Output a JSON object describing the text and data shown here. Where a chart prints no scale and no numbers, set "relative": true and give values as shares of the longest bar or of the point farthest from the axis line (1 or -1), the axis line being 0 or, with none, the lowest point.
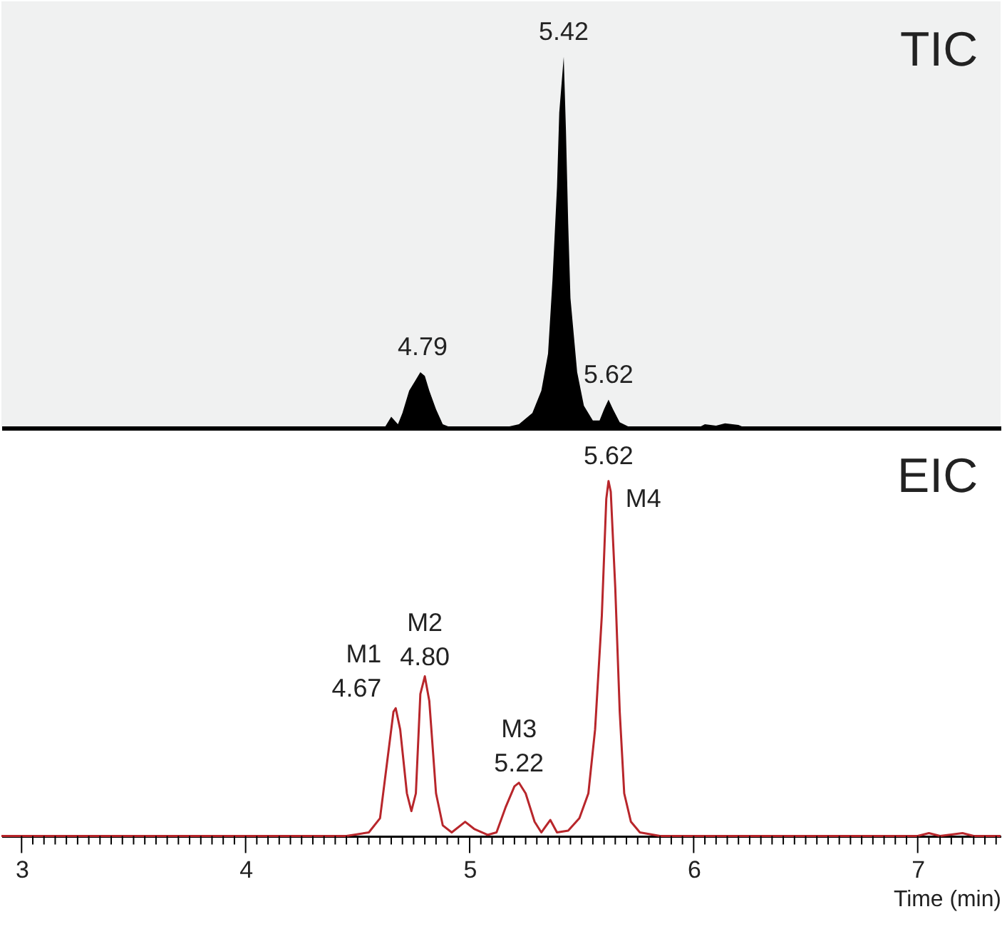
{
  "chart_data": [
    {
      "type": "area",
      "title": "TIC",
      "relative": true,
      "tick_labels": false,
      "grid": false,
      "xlim": [
        2.91,
        7.37
      ],
      "x": [
        2.91,
        4.62,
        4.65,
        4.68,
        4.7,
        4.73,
        4.76,
        4.78,
        4.8,
        4.82,
        4.85,
        4.88,
        4.92,
        5.15,
        5.22,
        5.28,
        5.32,
        5.35,
        5.37,
        5.39,
        5.4,
        5.42,
        5.43,
        5.44,
        5.45,
        5.48,
        5.51,
        5.55,
        5.58,
        5.6,
        5.62,
        5.64,
        5.67,
        5.72,
        6.02,
        6.05,
        6.1,
        6.14,
        6.2,
        6.23,
        7.37
      ],
      "series": [
        {
          "color": "#000000",
          "values": [
            0,
            0,
            0.03,
            0.01,
            0.04,
            0.1,
            0.13,
            0.15,
            0.14,
            0.1,
            0.05,
            0.01,
            0,
            0,
            0.01,
            0.04,
            0.1,
            0.2,
            0.4,
            0.65,
            0.85,
            1,
            0.8,
            0.55,
            0.35,
            0.15,
            0.06,
            0.02,
            0.02,
            0.05,
            0.076,
            0.05,
            0.015,
            0,
            0,
            0.01,
            0.006,
            0.012,
            0.008,
            0,
            0
          ]
        }
      ],
      "annotations": [
        {
          "text": "4.79",
          "x": 4.79,
          "y": 0.15
        },
        {
          "text": "5.42",
          "x": 5.42,
          "y": 1
        },
        {
          "text": "5.62",
          "x": 5.62,
          "y": 0.076
        }
      ]
    },
    {
      "type": "line",
      "title": "EIC",
      "relative": true,
      "tick_labels": "x",
      "grid": false,
      "xlabel": "Time (min)",
      "xlim": [
        2.91,
        7.37
      ],
      "line_style": "solid",
      "marker": "none",
      "xticks": [
        3,
        {
          "value": 3.05,
          "label": null
        },
        {
          "value": 3.1,
          "label": null
        },
        {
          "value": 3.15,
          "label": null
        },
        {
          "value": 3.2,
          "label": null
        },
        {
          "value": 3.25,
          "label": null
        },
        {
          "value": 3.3,
          "label": null
        },
        {
          "value": 3.35,
          "label": null
        },
        {
          "value": 3.4,
          "label": null
        },
        {
          "value": 3.45,
          "label": null
        },
        {
          "value": 3.5,
          "label": null
        },
        {
          "value": 3.55,
          "label": null
        },
        {
          "value": 3.6,
          "label": null
        },
        {
          "value": 3.65,
          "label": null
        },
        {
          "value": 3.7,
          "label": null
        },
        {
          "value": 3.75,
          "label": null
        },
        {
          "value": 3.8,
          "label": null
        },
        {
          "value": 3.85,
          "label": null
        },
        {
          "value": 3.9,
          "label": null
        },
        {
          "value": 3.95,
          "label": null
        },
        4,
        {
          "value": 4.05,
          "label": null
        },
        {
          "value": 4.1,
          "label": null
        },
        {
          "value": 4.15,
          "label": null
        },
        {
          "value": 4.2,
          "label": null
        },
        {
          "value": 4.25,
          "label": null
        },
        {
          "value": 4.3,
          "label": null
        },
        {
          "value": 4.35,
          "label": null
        },
        {
          "value": 4.4,
          "label": null
        },
        {
          "value": 4.45,
          "label": null
        },
        {
          "value": 4.5,
          "label": null
        },
        {
          "value": 4.55,
          "label": null
        },
        {
          "value": 4.6,
          "label": null
        },
        {
          "value": 4.65,
          "label": null
        },
        {
          "value": 4.7,
          "label": null
        },
        {
          "value": 4.75,
          "label": null
        },
        {
          "value": 4.8,
          "label": null
        },
        {
          "value": 4.85,
          "label": null
        },
        {
          "value": 4.9,
          "label": null
        },
        {
          "value": 4.95,
          "label": null
        },
        5,
        {
          "value": 5.05,
          "label": null
        },
        {
          "value": 5.1,
          "label": null
        },
        {
          "value": 5.15,
          "label": null
        },
        {
          "value": 5.2,
          "label": null
        },
        {
          "value": 5.25,
          "label": null
        },
        {
          "value": 5.3,
          "label": null
        },
        {
          "value": 5.35,
          "label": null
        },
        {
          "value": 5.4,
          "label": null
        },
        {
          "value": 5.45,
          "label": null
        },
        {
          "value": 5.5,
          "label": null
        },
        {
          "value": 5.55,
          "label": null
        },
        {
          "value": 5.6,
          "label": null
        },
        {
          "value": 5.65,
          "label": null
        },
        {
          "value": 5.7,
          "label": null
        },
        {
          "value": 5.75,
          "label": null
        },
        {
          "value": 5.8,
          "label": null
        },
        {
          "value": 5.85,
          "label": null
        },
        {
          "value": 5.9,
          "label": null
        },
        {
          "value": 5.95,
          "label": null
        },
        6,
        {
          "value": 6.05,
          "label": null
        },
        {
          "value": 6.1,
          "label": null
        },
        {
          "value": 6.15,
          "label": null
        },
        {
          "value": 6.2,
          "label": null
        },
        {
          "value": 6.25,
          "label": null
        },
        {
          "value": 6.3,
          "label": null
        },
        {
          "value": 6.35,
          "label": null
        },
        {
          "value": 6.4,
          "label": null
        },
        {
          "value": 6.45,
          "label": null
        },
        {
          "value": 6.5,
          "label": null
        },
        {
          "value": 6.55,
          "label": null
        },
        {
          "value": 6.6,
          "label": null
        },
        {
          "value": 6.65,
          "label": null
        },
        {
          "value": 6.7,
          "label": null
        },
        {
          "value": 6.75,
          "label": null
        },
        {
          "value": 6.8,
          "label": null
        },
        {
          "value": 6.85,
          "label": null
        },
        {
          "value": 6.9,
          "label": null
        },
        {
          "value": 6.95,
          "label": null
        },
        7,
        {
          "value": 7.05,
          "label": null
        },
        {
          "value": 7.1,
          "label": null
        },
        {
          "value": 7.15,
          "label": null
        },
        {
          "value": 7.2,
          "label": null
        },
        {
          "value": 7.25,
          "label": null
        },
        {
          "value": 7.3,
          "label": null
        },
        {
          "value": 7.35,
          "label": null
        }
      ],
      "x": [
        2.91,
        4.45,
        4.55,
        4.6,
        4.63,
        4.66,
        4.67,
        4.69,
        4.72,
        4.74,
        4.76,
        4.78,
        4.8,
        4.82,
        4.85,
        4.88,
        4.92,
        4.98,
        5.02,
        5.08,
        5.12,
        5.16,
        5.2,
        5.22,
        5.25,
        5.29,
        5.32,
        5.36,
        5.39,
        5.44,
        5.49,
        5.53,
        5.56,
        5.59,
        5.61,
        5.62,
        5.63,
        5.65,
        5.67,
        5.69,
        5.72,
        5.76,
        5.85,
        7.0,
        7.05,
        7.1,
        7.2,
        7.25,
        7.37
      ],
      "series": [
        {
          "color": "#b8262b",
          "values": [
            0,
            0,
            0.01,
            0.05,
            0.2,
            0.35,
            0.36,
            0.3,
            0.12,
            0.07,
            0.12,
            0.4,
            0.45,
            0.38,
            0.12,
            0.03,
            0.01,
            0.04,
            0.02,
            0.003,
            0.01,
            0.08,
            0.14,
            0.15,
            0.12,
            0.04,
            0.01,
            0.045,
            0.01,
            0.015,
            0.05,
            0.12,
            0.3,
            0.62,
            0.95,
            1,
            0.97,
            0.7,
            0.35,
            0.12,
            0.04,
            0.01,
            0,
            0,
            0.008,
            0,
            0.008,
            0,
            0
          ]
        }
      ],
      "annotations": [
        {
          "text": "M1\n4.67",
          "x": 4.67,
          "y": 0.36
        },
        {
          "text": "M2\n4.80",
          "x": 4.8,
          "y": 0.45
        },
        {
          "text": "M3\n5.22",
          "x": 5.22,
          "y": 0.15
        },
        {
          "text": "5.62",
          "x": 5.62,
          "y": 1
        },
        {
          "text": "M4",
          "x": 5.62,
          "y": 1
        }
      ]
    }
  ]
}
